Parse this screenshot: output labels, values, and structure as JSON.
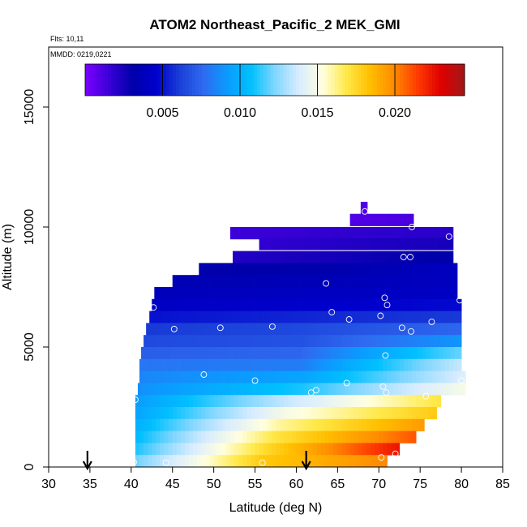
{
  "chart_data": {
    "type": "heatmap",
    "title": "ATOM2 Northeast_Pacific_2 MEK_GMI",
    "flights_label": "Flts: 10,11",
    "dates_label": "MMDD: 0219,0221",
    "xlabel": "Latitude (deg N)",
    "ylabel": "Altitude (m)",
    "xlim": [
      30,
      85
    ],
    "ylim": [
      0,
      17500
    ],
    "xticks": [
      "30",
      "35",
      "40",
      "45",
      "50",
      "55",
      "60",
      "65",
      "70",
      "75",
      "80",
      "85"
    ],
    "yticks": [
      "0",
      "5000",
      "10000",
      "15000"
    ],
    "ytick_values": [
      0,
      5000,
      10000,
      15000
    ],
    "colorbar": {
      "range": [
        0,
        0.0245
      ],
      "ticks": [
        "0.005",
        "0.010",
        "0.015",
        "0.020"
      ],
      "tick_values": [
        0.005,
        0.01,
        0.015,
        0.02
      ],
      "colors": [
        "#7b00ff",
        "#3b00d8",
        "#0000aa",
        "#0000cd",
        "#1a3fd8",
        "#2f6bf0",
        "#0a9cff",
        "#00c0ff",
        "#7fd6ff",
        "#d8ecff",
        "#ffffe0",
        "#ffe94a",
        "#ffc000",
        "#ff8c00",
        "#ff3c00",
        "#e00000",
        "#a01818"
      ]
    },
    "arrows_lat": [
      34.7,
      61.2
    ],
    "layers": [
      {
        "alt": 10800,
        "lat_start": 67.8,
        "lat_end": 68.6,
        "values": [
          0.001
        ]
      },
      {
        "alt": 10300,
        "lat_start": 66.5,
        "lat_end": 74.2,
        "values": [
          0.001,
          0.0012
        ]
      },
      {
        "alt": 9750,
        "lat_start": 52.0,
        "lat_end": 79.0,
        "values": [
          0.0015,
          0.0018,
          0.002
        ]
      },
      {
        "alt": 9300,
        "lat_start": 55.5,
        "lat_end": 79.0,
        "values": [
          0.0018,
          0.0022,
          0.0025
        ]
      },
      {
        "alt": 8750,
        "lat_start": 52.3,
        "lat_end": 79.0,
        "values": [
          0.0022,
          0.0026,
          0.0032
        ]
      },
      {
        "alt": 8250,
        "lat_start": 48.2,
        "lat_end": 79.5,
        "values": [
          0.003,
          0.0032,
          0.004
        ]
      },
      {
        "alt": 7750,
        "lat_start": 45.0,
        "lat_end": 79.5,
        "values": [
          0.0035,
          0.0036,
          0.004
        ]
      },
      {
        "alt": 7250,
        "lat_start": 42.8,
        "lat_end": 79.5,
        "values": [
          0.0038,
          0.004,
          0.0042
        ]
      },
      {
        "alt": 6750,
        "lat_start": 42.5,
        "lat_end": 80.0,
        "values": [
          0.0042,
          0.0045,
          0.0048
        ]
      },
      {
        "alt": 6250,
        "lat_start": 42.2,
        "lat_end": 80.0,
        "values": [
          0.005,
          0.0055,
          0.006
        ]
      },
      {
        "alt": 5750,
        "lat_start": 41.8,
        "lat_end": 80.0,
        "values": [
          0.006,
          0.0065,
          0.0075
        ]
      },
      {
        "alt": 5250,
        "lat_start": 41.5,
        "lat_end": 80.0,
        "values": [
          0.0065,
          0.0068,
          0.009
        ]
      },
      {
        "alt": 4750,
        "lat_start": 41.2,
        "lat_end": 80.0,
        "values": [
          0.0072,
          0.0075,
          0.012
        ]
      },
      {
        "alt": 4250,
        "lat_start": 41.0,
        "lat_end": 80.0,
        "values": [
          0.008,
          0.0082,
          0.0135
        ]
      },
      {
        "alt": 3750,
        "lat_start": 41.0,
        "lat_end": 80.5,
        "values": [
          0.0085,
          0.0095,
          0.014
        ]
      },
      {
        "alt": 3250,
        "lat_start": 40.8,
        "lat_end": 80.5,
        "values": [
          0.0088,
          0.011,
          0.015
        ]
      },
      {
        "alt": 2750,
        "lat_start": 40.5,
        "lat_end": 77.5,
        "values": [
          0.0092,
          0.0135,
          0.017
        ]
      },
      {
        "alt": 2250,
        "lat_start": 40.5,
        "lat_end": 77.0,
        "values": [
          0.0095,
          0.015,
          0.018
        ]
      },
      {
        "alt": 1750,
        "lat_start": 40.5,
        "lat_end": 75.5,
        "values": [
          0.01,
          0.016,
          0.0195
        ]
      },
      {
        "alt": 1250,
        "lat_start": 40.5,
        "lat_end": 74.5,
        "values": [
          0.0105,
          0.017,
          0.021
        ]
      },
      {
        "alt": 750,
        "lat_start": 40.5,
        "lat_end": 72.5,
        "values": [
          0.011,
          0.0175,
          0.0225
        ]
      },
      {
        "alt": 250,
        "lat_start": 40.5,
        "lat_end": 71.0,
        "values": [
          0.012,
          0.018,
          0.02
        ]
      }
    ],
    "points": [
      [
        68.3,
        10650
      ],
      [
        74.0,
        10000
      ],
      [
        78.5,
        9600
      ],
      [
        73.0,
        8750
      ],
      [
        73.8,
        8750
      ],
      [
        63.6,
        7650
      ],
      [
        70.7,
        7050
      ],
      [
        71.0,
        6750
      ],
      [
        79.8,
        6950
      ],
      [
        42.7,
        6650
      ],
      [
        64.3,
        6450
      ],
      [
        66.4,
        6150
      ],
      [
        70.2,
        6300
      ],
      [
        76.4,
        6050
      ],
      [
        45.2,
        5750
      ],
      [
        50.8,
        5800
      ],
      [
        57.1,
        5850
      ],
      [
        72.8,
        5800
      ],
      [
        73.9,
        5650
      ],
      [
        70.8,
        4650
      ],
      [
        48.8,
        3850
      ],
      [
        55.0,
        3600
      ],
      [
        66.1,
        3500
      ],
      [
        70.5,
        3350
      ],
      [
        70.9,
        3100
      ],
      [
        62.4,
        3200
      ],
      [
        61.8,
        3100
      ],
      [
        75.7,
        2950
      ],
      [
        40.5,
        2800
      ],
      [
        40.3,
        200
      ],
      [
        44.2,
        180
      ],
      [
        55.9,
        180
      ],
      [
        70.3,
        400
      ],
      [
        72.0,
        550
      ],
      [
        80.0,
        3600
      ]
    ]
  }
}
